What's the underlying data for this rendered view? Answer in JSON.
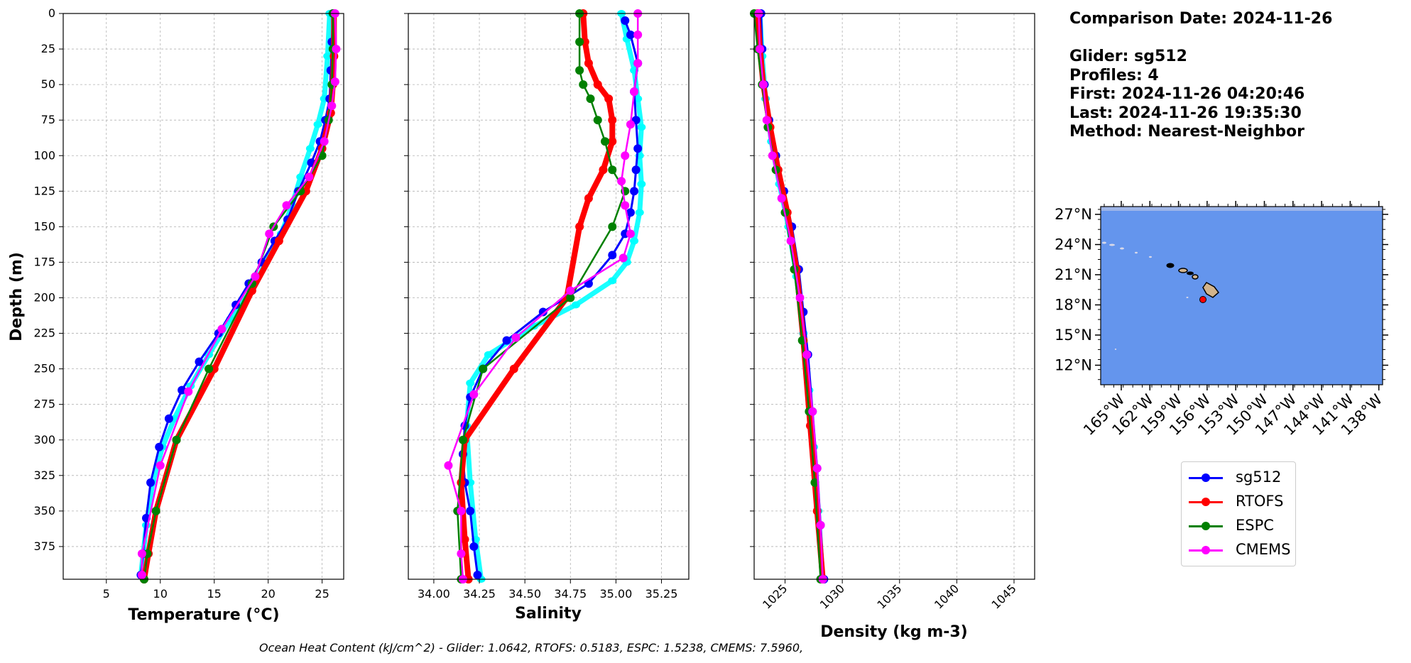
{
  "info": {
    "comparison": "Comparison Date: 2024-11-26",
    "glider": "Glider: sg512",
    "profiles": "Profiles: 4",
    "first": "First: 2024-11-26 04:20:46",
    "last": "Last: 2024-11-26 19:35:30",
    "method": "Method: Nearest-Neighbor"
  },
  "footer": "Ocean Heat Content (kJ/cm^2) - Glider: 1.0642,  RTOFS: 0.5183,  ESPC: 1.5238,  CMEMS: 7.5960,",
  "legend": [
    {
      "label": "sg512",
      "color": "#0000ff"
    },
    {
      "label": "RTOFS",
      "color": "#ff0000"
    },
    {
      "label": "ESPC",
      "color": "#008000"
    },
    {
      "label": "CMEMS",
      "color": "#ff00ff"
    }
  ],
  "chart_data": [
    {
      "type": "line",
      "xlabel": "Temperature (°C)",
      "ylabel": "Depth (m)",
      "xlim": [
        1,
        27
      ],
      "ylim": [
        398,
        0
      ],
      "xticks": [
        5,
        10,
        15,
        20,
        25
      ],
      "yticks": [
        0,
        25,
        50,
        75,
        100,
        125,
        150,
        175,
        200,
        225,
        250,
        275,
        300,
        325,
        350,
        375
      ],
      "grid": true,
      "series": [
        {
          "name": "sg512",
          "color": "#0000ff",
          "x": [
            26.0,
            25.9,
            25.8,
            25.7,
            25.3,
            24.8,
            24.0,
            22.8,
            21.8,
            20.6,
            19.4,
            18.2,
            17.0,
            15.4,
            13.6,
            12.0,
            10.8,
            9.9,
            9.1,
            8.7,
            8.4,
            8.2
          ],
          "y": [
            0,
            20,
            40,
            60,
            75,
            90,
            105,
            125,
            145,
            160,
            175,
            190,
            205,
            225,
            245,
            265,
            285,
            305,
            330,
            355,
            380,
            395
          ]
        },
        {
          "name": "RTOFS",
          "color": "#ff0000",
          "x": [
            26.1,
            26.1,
            26.0,
            25.8,
            25.0,
            23.5,
            21.0,
            18.5,
            15.0,
            11.5,
            9.6,
            8.9,
            8.5
          ],
          "y": [
            0,
            30,
            50,
            70,
            95,
            125,
            160,
            195,
            250,
            300,
            350,
            380,
            398
          ]
        },
        {
          "name": "ESPC",
          "color": "#008000",
          "x": [
            26.0,
            26.0,
            25.9,
            25.6,
            25.0,
            23.0,
            20.5,
            18.5,
            14.5,
            11.5,
            9.6,
            8.8,
            8.5
          ],
          "y": [
            0,
            25,
            50,
            75,
            100,
            125,
            150,
            190,
            250,
            300,
            350,
            380,
            398
          ]
        },
        {
          "name": "CMEMS",
          "color": "#ff00ff",
          "x": [
            26.2,
            26.3,
            26.2,
            25.9,
            25.2,
            23.8,
            21.7,
            20.1,
            18.8,
            15.7,
            12.6,
            10.0,
            8.3,
            8.3
          ],
          "y": [
            0,
            25,
            48,
            65,
            90,
            115,
            135,
            155,
            185,
            222,
            266,
            318,
            380,
            395
          ]
        },
        {
          "name": "sg512 raw",
          "color": "#00ffff",
          "x": [
            25.7,
            25.5,
            25.2,
            24.6,
            23.9,
            23.0,
            22.2,
            21.2,
            19.8,
            18.4,
            16.5,
            14.5,
            12.8,
            11.3,
            10.2,
            9.3,
            8.7,
            8.2
          ],
          "y": [
            0,
            30,
            60,
            78,
            95,
            115,
            135,
            155,
            175,
            195,
            215,
            240,
            262,
            285,
            305,
            330,
            360,
            395
          ]
        }
      ]
    },
    {
      "type": "line",
      "xlabel": "Salinity",
      "xlim": [
        33.86,
        35.4
      ],
      "ylim": [
        398,
        0
      ],
      "xticks": [
        34.0,
        34.25,
        34.5,
        34.75,
        35.0,
        35.25
      ],
      "xticklabels": [
        "34.00",
        "34.25",
        "34.50",
        "34.75",
        "35.00",
        "35.25"
      ],
      "grid": true,
      "series": [
        {
          "name": "sg512",
          "color": "#0000ff",
          "x": [
            35.05,
            35.08,
            35.12,
            35.1,
            35.11,
            35.12,
            35.11,
            35.1,
            35.08,
            35.05,
            34.98,
            34.85,
            34.6,
            34.4,
            34.27,
            34.2,
            34.17,
            34.16,
            34.17,
            34.2,
            34.22,
            34.24
          ],
          "y": [
            5,
            15,
            35,
            55,
            75,
            95,
            110,
            125,
            140,
            155,
            170,
            190,
            210,
            230,
            250,
            270,
            290,
            310,
            330,
            350,
            375,
            395
          ]
        },
        {
          "name": "RTOFS",
          "color": "#ff0000",
          "x": [
            34.82,
            34.83,
            34.85,
            34.9,
            34.96,
            34.98,
            34.98,
            34.93,
            34.85,
            34.8,
            34.73,
            34.44,
            34.17,
            34.15,
            34.17,
            34.19
          ],
          "y": [
            0,
            20,
            35,
            50,
            60,
            75,
            90,
            110,
            130,
            150,
            200,
            250,
            300,
            330,
            370,
            398
          ]
        },
        {
          "name": "ESPC",
          "color": "#008000",
          "x": [
            34.8,
            34.8,
            34.8,
            34.82,
            34.86,
            34.9,
            34.94,
            34.98,
            35.05,
            34.98,
            34.75,
            34.27,
            34.16,
            34.13,
            34.15
          ],
          "y": [
            0,
            20,
            40,
            50,
            60,
            75,
            90,
            110,
            125,
            150,
            200,
            250,
            300,
            350,
            398
          ]
        },
        {
          "name": "CMEMS",
          "color": "#ff00ff",
          "x": [
            35.12,
            35.12,
            35.12,
            35.1,
            35.08,
            35.05,
            35.03,
            35.05,
            35.08,
            35.04,
            34.75,
            34.45,
            34.22,
            34.08,
            34.15,
            34.15,
            34.16
          ],
          "y": [
            0,
            15,
            35,
            55,
            78,
            100,
            118,
            135,
            155,
            172,
            195,
            228,
            268,
            318,
            350,
            380,
            398
          ]
        },
        {
          "name": "sg512 raw",
          "color": "#00ffff",
          "x": [
            35.03,
            35.06,
            35.1,
            35.12,
            35.14,
            35.13,
            35.14,
            35.13,
            35.1,
            35.06,
            34.98,
            34.78,
            34.55,
            34.3,
            34.2,
            34.18,
            34.2,
            34.23,
            34.26
          ],
          "y": [
            0,
            18,
            40,
            60,
            80,
            100,
            120,
            140,
            160,
            175,
            188,
            205,
            220,
            240,
            260,
            290,
            330,
            370,
            398
          ]
        }
      ]
    },
    {
      "type": "line",
      "xlabel": "Density (kg m-3)",
      "xlim": [
        1022.3,
        1046.8
      ],
      "ylim": [
        398,
        0
      ],
      "xticks": [
        1025,
        1030,
        1035,
        1040,
        1045
      ],
      "grid": true,
      "series": [
        {
          "name": "sg512",
          "color": "#0000ff",
          "x": [
            1022.9,
            1023.0,
            1023.2,
            1023.6,
            1024.2,
            1024.9,
            1025.6,
            1026.2,
            1026.6,
            1027.0,
            1027.4,
            1027.8,
            1028.1,
            1028.4
          ],
          "y": [
            0,
            25,
            50,
            75,
            100,
            125,
            150,
            180,
            210,
            240,
            280,
            320,
            360,
            398
          ]
        },
        {
          "name": "RTOFS",
          "color": "#ff0000",
          "x": [
            1022.6,
            1022.8,
            1023.1,
            1023.7,
            1024.4,
            1025.2,
            1026.0,
            1026.6,
            1027.2,
            1027.8,
            1028.3
          ],
          "y": [
            0,
            25,
            50,
            80,
            110,
            140,
            180,
            230,
            290,
            350,
            398
          ]
        },
        {
          "name": "ESPC",
          "color": "#008000",
          "x": [
            1022.3,
            1022.6,
            1023.0,
            1023.5,
            1024.2,
            1025.0,
            1025.8,
            1026.5,
            1027.1,
            1027.6,
            1028.1
          ],
          "y": [
            0,
            25,
            50,
            80,
            110,
            140,
            180,
            230,
            280,
            330,
            398
          ]
        },
        {
          "name": "CMEMS",
          "color": "#ff00ff",
          "x": [
            1022.7,
            1022.8,
            1023.1,
            1023.4,
            1023.9,
            1024.7,
            1025.5,
            1026.3,
            1026.9,
            1027.4,
            1027.8,
            1028.1,
            1028.3
          ],
          "y": [
            0,
            25,
            50,
            75,
            100,
            130,
            160,
            200,
            240,
            280,
            320,
            360,
            398
          ]
        },
        {
          "name": "sg512 raw",
          "color": "#00ffff",
          "x": [
            1022.8,
            1023.0,
            1023.3,
            1023.8,
            1024.5,
            1025.3,
            1026.0,
            1026.6,
            1027.1,
            1027.5,
            1027.9,
            1028.3
          ],
          "y": [
            0,
            30,
            60,
            90,
            120,
            150,
            185,
            225,
            265,
            305,
            350,
            398
          ]
        }
      ]
    }
  ],
  "map": {
    "xticks": [
      "165°W",
      "162°W",
      "159°W",
      "156°W",
      "153°W",
      "150°W",
      "147°W",
      "144°W",
      "141°W",
      "138°W"
    ],
    "yticks": [
      "27°N",
      "24°N",
      "21°N",
      "18°N",
      "15°N",
      "12°N"
    ],
    "ocean_color": "#6495ed",
    "land_color": "#d2b48c",
    "glider_marker": "red-dot"
  }
}
